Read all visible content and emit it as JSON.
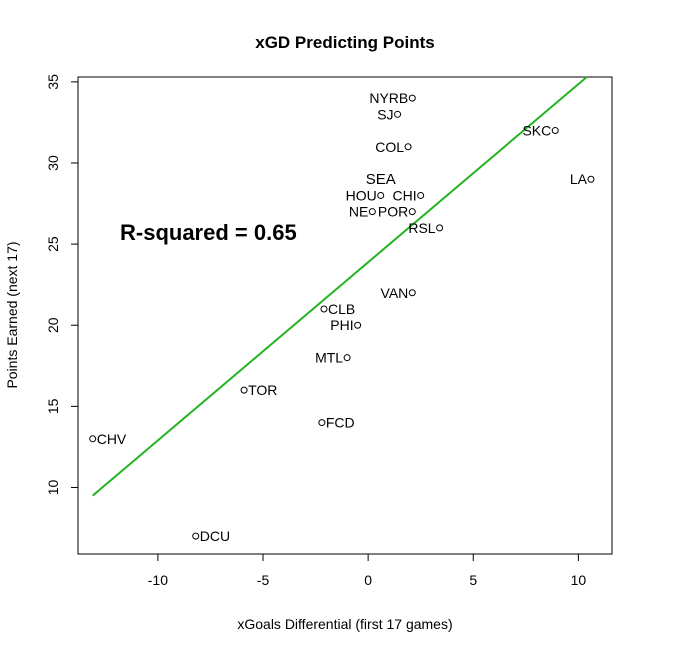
{
  "chart_data": {
    "type": "scatter",
    "title": "xGD Predicting Points",
    "xlabel": "xGoals Differential (first 17 games)",
    "ylabel": "Points Earned (next 17)",
    "xlim": [
      -13.8,
      11.6
    ],
    "ylim": [
      5.9,
      35.3
    ],
    "x_ticks": [
      -10,
      -5,
      0,
      5,
      10
    ],
    "y_ticks": [
      10,
      15,
      20,
      25,
      30,
      35
    ],
    "x_tick_labels": [
      "-10",
      "-5",
      "0",
      "5",
      "10"
    ],
    "y_tick_labels": [
      "10",
      "15",
      "20",
      "25",
      "30",
      "35"
    ],
    "grid": false,
    "points": [
      {
        "label": "NYRB",
        "x": 2.1,
        "y": 34,
        "label_side": "left"
      },
      {
        "label": "SJ",
        "x": 1.4,
        "y": 33,
        "label_side": "left"
      },
      {
        "label": "SKC",
        "x": 8.9,
        "y": 32,
        "label_side": "left"
      },
      {
        "label": "COL",
        "x": 1.9,
        "y": 31,
        "label_side": "left"
      },
      {
        "label": "LA",
        "x": 10.6,
        "y": 29,
        "label_side": "left"
      },
      {
        "label": "SEA",
        "x": 0.6,
        "y": 29,
        "label_side": "none"
      },
      {
        "label": "HOU",
        "x": 0.6,
        "y": 28,
        "label_side": "left"
      },
      {
        "label": "CHI",
        "x": 2.5,
        "y": 28,
        "label_side": "left"
      },
      {
        "label": "NE",
        "x": 0.2,
        "y": 27,
        "label_side": "left"
      },
      {
        "label": "POR",
        "x": 2.1,
        "y": 27,
        "label_side": "left"
      },
      {
        "label": "RSL",
        "x": 3.4,
        "y": 26,
        "label_side": "left"
      },
      {
        "label": "VAN",
        "x": 2.1,
        "y": 22,
        "label_side": "left"
      },
      {
        "label": "CLB",
        "x": -2.1,
        "y": 21,
        "label_side": "right"
      },
      {
        "label": "PHI",
        "x": -0.5,
        "y": 20,
        "label_side": "left"
      },
      {
        "label": "MTL",
        "x": -1.0,
        "y": 18,
        "label_side": "left"
      },
      {
        "label": "TOR",
        "x": -5.9,
        "y": 16,
        "label_side": "right"
      },
      {
        "label": "FCD",
        "x": -2.2,
        "y": 14,
        "label_side": "right"
      },
      {
        "label": "CHV",
        "x": -13.1,
        "y": 13,
        "label_side": "right"
      },
      {
        "label": "DCU",
        "x": -8.2,
        "y": 7,
        "label_side": "right"
      }
    ],
    "fit_line": {
      "x0": -13.1,
      "y0": 9.5,
      "x1": 10.4,
      "y1": 35.3,
      "color": "#22b422"
    },
    "annotation": "R-squared = 0.65",
    "point_color": "#000000"
  }
}
